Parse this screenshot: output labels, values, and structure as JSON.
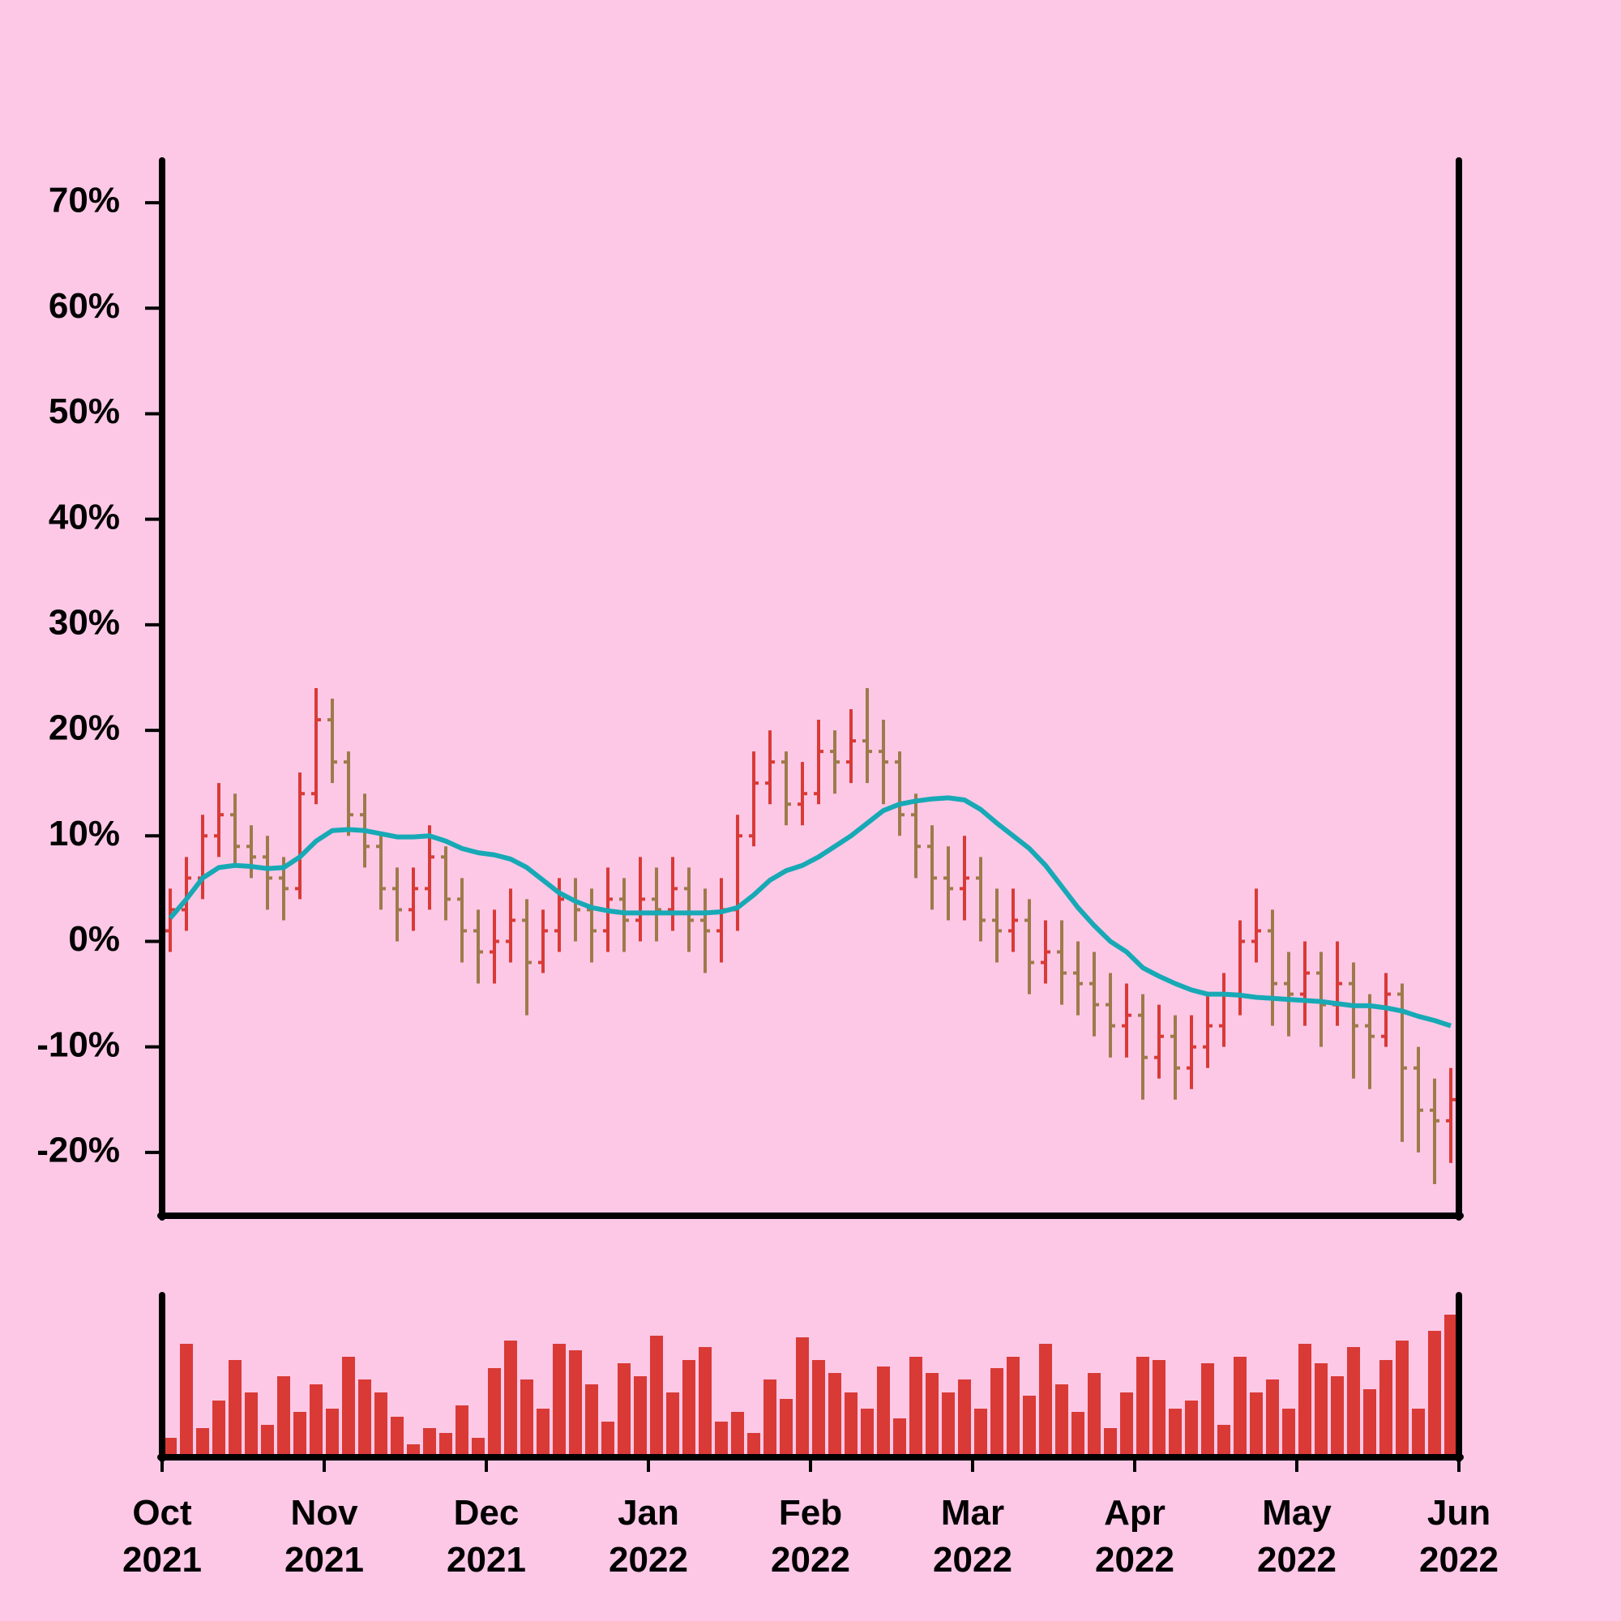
{
  "chart_data": {
    "type": "ohlc",
    "xlim": [
      0,
      8
    ],
    "xticks": [
      {
        "value": 0,
        "label": "Oct 2021"
      },
      {
        "value": 1,
        "label": "Nov 2021"
      },
      {
        "value": 2,
        "label": "Dec 2021"
      },
      {
        "value": 3,
        "label": "Jan 2022"
      },
      {
        "value": 4,
        "label": "Feb 2022"
      },
      {
        "value": 5,
        "label": "Mar 2022"
      },
      {
        "value": 6,
        "label": "Apr 2022"
      },
      {
        "value": 7,
        "label": "May 2022"
      },
      {
        "value": 8,
        "label": "Jun 2022"
      }
    ],
    "ylim": [
      -26,
      74
    ],
    "yticks": [
      {
        "value": -20,
        "label": "-20%"
      },
      {
        "value": -10,
        "label": "-10%"
      },
      {
        "value": 0,
        "label": "0%"
      },
      {
        "value": 10,
        "label": "10%"
      },
      {
        "value": 20,
        "label": "20%"
      },
      {
        "value": 30,
        "label": "30%"
      },
      {
        "value": 40,
        "label": "40%"
      },
      {
        "value": 50,
        "label": "50%"
      },
      {
        "value": 60,
        "label": "60%"
      },
      {
        "value": 70,
        "label": "70%"
      }
    ],
    "up_color": "#d93a36",
    "down_color": "#9e7a4a",
    "x": [
      0.05,
      0.15,
      0.25,
      0.35,
      0.45,
      0.55,
      0.65,
      0.75,
      0.85,
      0.95,
      1.05,
      1.15,
      1.25,
      1.35,
      1.45,
      1.55,
      1.65,
      1.75,
      1.85,
      1.95,
      2.05,
      2.15,
      2.25,
      2.35,
      2.45,
      2.55,
      2.65,
      2.75,
      2.85,
      2.95,
      3.05,
      3.15,
      3.25,
      3.35,
      3.45,
      3.55,
      3.65,
      3.75,
      3.85,
      3.95,
      4.05,
      4.15,
      4.25,
      4.35,
      4.45,
      4.55,
      4.65,
      4.75,
      4.85,
      4.95,
      5.05,
      5.15,
      5.25,
      5.35,
      5.45,
      5.55,
      5.65,
      5.75,
      5.85,
      5.95,
      6.05,
      6.15,
      6.25,
      6.35,
      6.45,
      6.55,
      6.65,
      6.75,
      6.85,
      6.95,
      7.05,
      7.15,
      7.25,
      7.35,
      7.45,
      7.55,
      7.65,
      7.75,
      7.85,
      7.95
    ],
    "open": [
      1,
      3,
      6,
      10,
      12,
      9,
      8,
      6,
      5,
      14,
      21,
      17,
      12,
      9,
      5,
      3,
      5,
      8,
      4,
      1,
      -1,
      0,
      2,
      -2,
      1,
      4,
      3,
      1,
      4,
      2,
      4,
      3,
      5,
      2,
      1,
      3,
      10,
      15,
      17,
      13,
      14,
      18,
      17,
      19,
      18,
      17,
      12,
      9,
      6,
      5,
      6,
      2,
      1,
      2,
      -2,
      -1,
      -3,
      -4,
      -6,
      -8,
      -7,
      -11,
      -9,
      -12,
      -10,
      -8,
      -5,
      0,
      1,
      -4,
      -5,
      -3,
      -6,
      -4,
      -8,
      -9,
      -5,
      -12,
      -16,
      -17
    ],
    "high": [
      5,
      8,
      12,
      15,
      14,
      11,
      10,
      8,
      16,
      24,
      23,
      18,
      14,
      10,
      7,
      7,
      11,
      9,
      6,
      3,
      3,
      5,
      4,
      3,
      6,
      6,
      5,
      7,
      6,
      8,
      7,
      8,
      7,
      5,
      6,
      12,
      18,
      20,
      18,
      17,
      21,
      20,
      22,
      24,
      21,
      18,
      14,
      11,
      9,
      10,
      8,
      5,
      5,
      4,
      2,
      2,
      0,
      -1,
      -3,
      -4,
      -5,
      -6,
      -7,
      -7,
      -5,
      -3,
      2,
      5,
      3,
      -1,
      0,
      -1,
      0,
      -2,
      -5,
      -3,
      -4,
      -10,
      -13,
      -12
    ],
    "low": [
      -1,
      1,
      4,
      8,
      7,
      6,
      3,
      2,
      4,
      13,
      15,
      10,
      7,
      3,
      0,
      1,
      3,
      2,
      -2,
      -4,
      -4,
      -2,
      -7,
      -3,
      -1,
      0,
      -2,
      -1,
      -1,
      0,
      0,
      1,
      -1,
      -3,
      -2,
      1,
      9,
      13,
      11,
      11,
      13,
      14,
      15,
      15,
      13,
      10,
      6,
      3,
      2,
      2,
      0,
      -2,
      -1,
      -5,
      -4,
      -6,
      -7,
      -9,
      -11,
      -11,
      -15,
      -13,
      -15,
      -14,
      -12,
      -10,
      -7,
      -2,
      -8,
      -9,
      -8,
      -10,
      -8,
      -13,
      -14,
      -10,
      -19,
      -20,
      -23,
      -21
    ],
    "close": [
      3,
      6,
      10,
      12,
      9,
      8,
      6,
      5,
      14,
      21,
      17,
      12,
      9,
      5,
      3,
      5,
      8,
      4,
      1,
      -1,
      0,
      2,
      -2,
      1,
      4,
      3,
      1,
      4,
      2,
      4,
      3,
      5,
      2,
      1,
      3,
      10,
      15,
      17,
      13,
      14,
      18,
      17,
      19,
      18,
      17,
      12,
      9,
      6,
      5,
      6,
      2,
      1,
      2,
      -2,
      -1,
      -3,
      -4,
      -6,
      -8,
      -7,
      -11,
      -9,
      -12,
      -10,
      -8,
      -5,
      0,
      1,
      -4,
      -5,
      -3,
      -6,
      -4,
      -8,
      -9,
      -5,
      -12,
      -16,
      -17,
      -15
    ],
    "moving_average": {
      "color": "#17a9b5",
      "values": [
        2.2,
        4,
        6,
        7,
        7.2,
        7.1,
        6.9,
        7,
        8,
        9.5,
        10.5,
        10.6,
        10.5,
        10.2,
        9.9,
        9.9,
        10,
        9.5,
        8.8,
        8.4,
        8.2,
        7.8,
        7,
        5.8,
        4.6,
        3.8,
        3.2,
        2.9,
        2.7,
        2.7,
        2.7,
        2.7,
        2.7,
        2.7,
        2.8,
        3.2,
        4.4,
        5.8,
        6.7,
        7.2,
        8,
        9,
        10,
        11.2,
        12.4,
        13,
        13.3,
        13.5,
        13.6,
        13.4,
        12.5,
        11.2,
        10,
        8.8,
        7.2,
        5.2,
        3.2,
        1.5,
        0,
        -1,
        -2.5,
        -3.3,
        -4,
        -4.6,
        -5,
        -5,
        -5.1,
        -5.3,
        -5.4,
        -5.5,
        -5.6,
        -5.7,
        -5.9,
        -6.1,
        -6.1,
        -6.3,
        -6.6,
        -7.1,
        -7.5,
        -8
      ]
    },
    "volume": {
      "color": "#d93a36",
      "ylim": [
        0,
        100
      ],
      "values": [
        12,
        70,
        18,
        35,
        60,
        40,
        20,
        50,
        28,
        45,
        30,
        62,
        48,
        40,
        25,
        8,
        18,
        15,
        32,
        12,
        55,
        72,
        48,
        30,
        70,
        66,
        45,
        22,
        58,
        50,
        75,
        40,
        60,
        68,
        22,
        28,
        15,
        48,
        36,
        74,
        60,
        52,
        40,
        30,
        56,
        24,
        62,
        52,
        40,
        48,
        30,
        55,
        62,
        38,
        70,
        45,
        28,
        52,
        18,
        40,
        62,
        60,
        30,
        35,
        58,
        20,
        62,
        40,
        48,
        30,
        70,
        58,
        50,
        68,
        42,
        60,
        72,
        30,
        78,
        88
      ]
    }
  }
}
